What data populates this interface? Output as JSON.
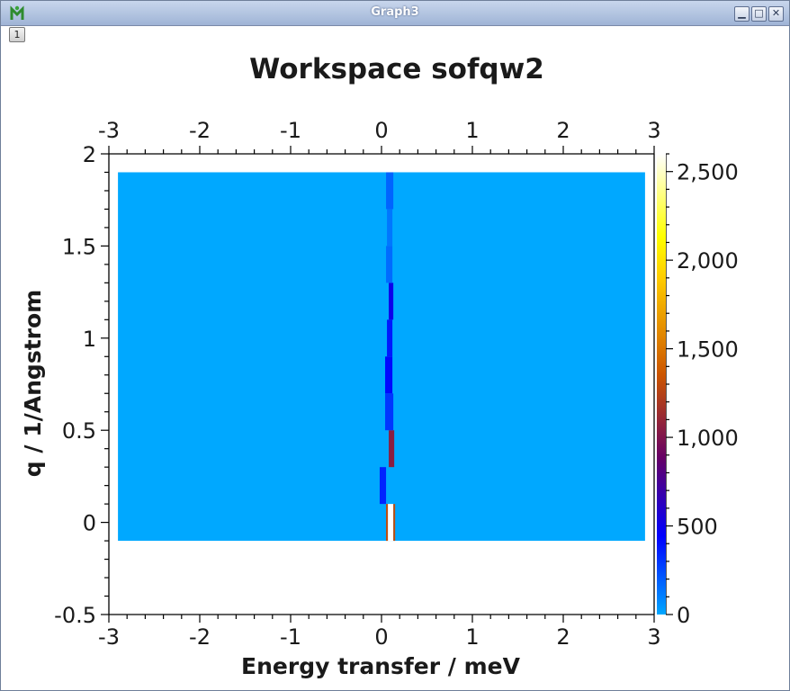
{
  "window": {
    "title": "Graph3",
    "layer_button": "1",
    "icons": [
      "mantid-app-icon",
      "minimize-icon",
      "maximize-icon",
      "close-icon"
    ]
  },
  "chart_data": {
    "type": "heatmap",
    "title": "Workspace sofqw2",
    "xlabel": "Energy transfer / meV",
    "ylabel": "q / 1/Angstrom",
    "xlim": [
      -3,
      3
    ],
    "ylim": [
      -0.5,
      2
    ],
    "x_ticks": [
      "-3",
      "-2",
      "-1",
      "0",
      "1",
      "2",
      "3"
    ],
    "y_ticks": [
      "-0.5",
      "0",
      "0.5",
      "1",
      "1.5",
      "2"
    ],
    "data_extent": {
      "x": [
        -2.9,
        2.9
      ],
      "y": [
        -0.1,
        1.9
      ]
    },
    "background_value": 0,
    "colorbar": {
      "range": [
        0,
        2600
      ],
      "ticks": [
        "0",
        "500",
        "1,000",
        "1,500",
        "2,000",
        "2,500"
      ],
      "colormap": [
        "#00a8ff",
        "#0000ff",
        "#660066",
        "#cc5500",
        "#ffcc00",
        "#ffff00",
        "#ffffff"
      ]
    },
    "peak_cells": [
      {
        "x": [
          0.07,
          0.13
        ],
        "y": [
          -0.1,
          0.1
        ],
        "value": 2600
      },
      {
        "x": [
          0.05,
          0.07
        ],
        "y": [
          -0.1,
          0.1
        ],
        "value": 1300
      },
      {
        "x": [
          0.13,
          0.15
        ],
        "y": [
          -0.1,
          0.1
        ],
        "value": 1300
      },
      {
        "x": [
          -0.02,
          0.05
        ],
        "y": [
          0.1,
          0.3
        ],
        "value": 350
      },
      {
        "x": [
          0.08,
          0.14
        ],
        "y": [
          0.3,
          0.5
        ],
        "value": 1050
      },
      {
        "x": [
          0.04,
          0.13
        ],
        "y": [
          0.5,
          0.7
        ],
        "value": 300
      },
      {
        "x": [
          0.04,
          0.12
        ],
        "y": [
          0.7,
          0.9
        ],
        "value": 420
      },
      {
        "x": [
          0.06,
          0.12
        ],
        "y": [
          0.9,
          1.1
        ],
        "value": 380
      },
      {
        "x": [
          0.08,
          0.13
        ],
        "y": [
          1.1,
          1.3
        ],
        "value": 500
      },
      {
        "x": [
          0.05,
          0.12
        ],
        "y": [
          1.3,
          1.5
        ],
        "value": 160
      },
      {
        "x": [
          0.06,
          0.12
        ],
        "y": [
          1.5,
          1.7
        ],
        "value": 130
      },
      {
        "x": [
          0.05,
          0.13
        ],
        "y": [
          1.7,
          1.9
        ],
        "value": 180
      }
    ]
  }
}
